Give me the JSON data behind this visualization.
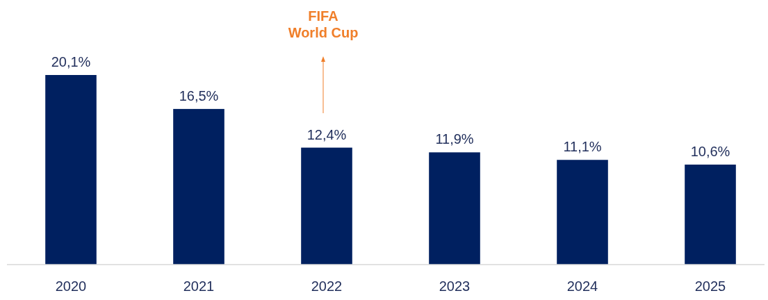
{
  "chart_data": {
    "type": "bar",
    "categories": [
      "2020",
      "2021",
      "2022",
      "2023",
      "2024",
      "2025"
    ],
    "values": [
      20.1,
      16.5,
      12.4,
      11.9,
      11.1,
      10.6
    ],
    "value_labels": [
      "20,1%",
      "16,5%",
      "12,4%",
      "11,9%",
      "11,1%",
      "10,6%"
    ],
    "color": "#002060",
    "annotations": [
      "FIFA World Cup"
    ]
  }
}
